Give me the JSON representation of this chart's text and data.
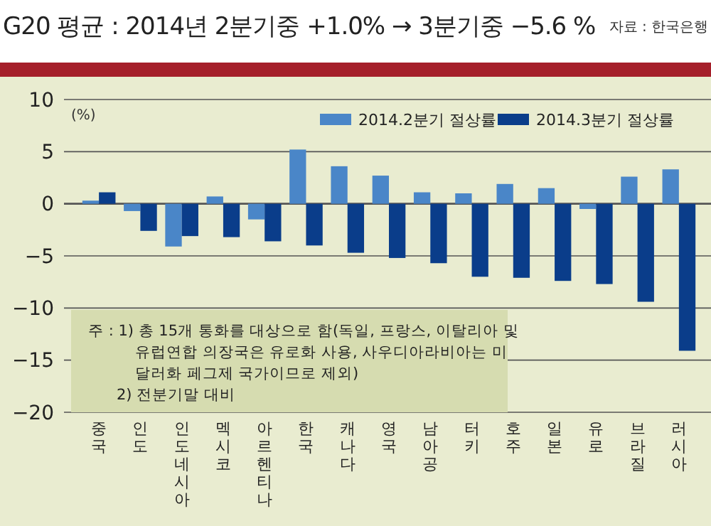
{
  "chart_data": {
    "type": "bar",
    "title": "G20 평균 : 2014년 2분기중 +1.0% → 3분기중 −5.6 %",
    "ylabel": "(%)",
    "categories": [
      "중국",
      "인도",
      "인도네시아",
      "멕시코",
      "아르헨티나",
      "한국",
      "캐나다",
      "영국",
      "남아공",
      "터키",
      "호주",
      "일본",
      "유로",
      "브라질",
      "러시아"
    ],
    "series": [
      {
        "name": "2014.2분기 절상률",
        "color": "#4a86c8",
        "values": [
          0.3,
          -0.7,
          -4.1,
          0.7,
          -1.5,
          5.2,
          3.6,
          2.7,
          1.1,
          1.0,
          1.9,
          1.5,
          -0.5,
          2.6,
          3.3
        ]
      },
      {
        "name": "2014.3분기 절상률",
        "color": "#0a3d8a",
        "values": [
          1.1,
          -2.6,
          -3.1,
          -3.2,
          -3.6,
          -4.0,
          -4.7,
          -5.2,
          -5.7,
          -7.0,
          -7.1,
          -7.4,
          -7.7,
          -9.4,
          -14.1
        ]
      }
    ],
    "ylim": [
      -20,
      10
    ],
    "yticks": [
      {
        "value": -20,
        "label": "−20"
      },
      {
        "value": -15,
        "label": "−15"
      },
      {
        "value": -10,
        "label": "−10"
      },
      {
        "value": -5,
        "label": "−5"
      },
      0,
      5,
      10
    ],
    "grid": "y",
    "legend": "top right",
    "annotations": [
      "자료 : 한국은행",
      "주 : 1) 총 15개 통화를 대상으로 함(독일, 프랑스, 이탈리아 및",
      "유럽연합 의장국은 유로화 사용, 사우디아라비아는 미",
      "달러화 페그제 국가이므로 제외)",
      "2) 전분기말 대비"
    ]
  }
}
